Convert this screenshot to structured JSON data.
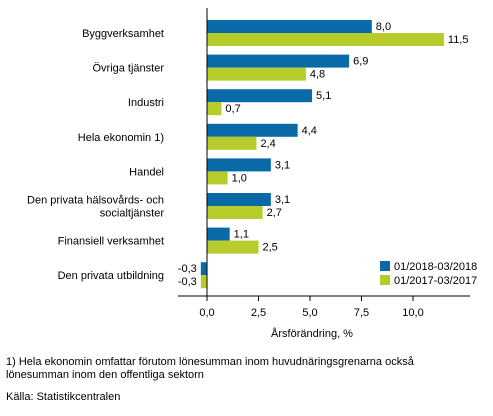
{
  "chart_data": {
    "type": "bar",
    "orientation": "horizontal",
    "categories": [
      [
        "Byggverksamhet"
      ],
      [
        "Övriga tjänster"
      ],
      [
        "Industri"
      ],
      [
        "Hela ekonomin 1)"
      ],
      [
        "Handel"
      ],
      [
        "Den privata hälsovårds- och",
        "socialtjänster"
      ],
      [
        "Finansiell verksamhet"
      ],
      [
        "Den privata utbildning"
      ]
    ],
    "series": [
      {
        "name": "01/2018-03/2018",
        "color": "#0a6aa8",
        "values": [
          8.0,
          6.9,
          5.1,
          4.4,
          3.1,
          3.1,
          1.1,
          -0.3
        ],
        "labels": [
          "8,0",
          "6,9",
          "5,1",
          "4,4",
          "3,1",
          "3,1",
          "1,1",
          "-0,3"
        ]
      },
      {
        "name": "01/2017-03/2017",
        "color": "#b5cc2a",
        "values": [
          11.5,
          4.8,
          0.7,
          2.4,
          1.0,
          2.7,
          2.5,
          -0.3
        ],
        "labels": [
          "11,5",
          "4,8",
          "0,7",
          "2,4",
          "1,0",
          "2,7",
          "2,5",
          "-0,3"
        ]
      }
    ],
    "xlim": [
      -1.2,
      13.2
    ],
    "ticks": [
      0,
      2.5,
      5,
      7.5,
      10
    ],
    "tick_labels": [
      "0,0",
      "2,5",
      "5,0",
      "7,5",
      "10,0"
    ],
    "xlabel": "Årsförändring, %",
    "ylabel": "",
    "title": "",
    "grid": false,
    "legend_position": "bottom-right"
  },
  "footnotes": {
    "note_line1": "1) Hela ekonomin omfattar förutom lönesumman inom huvudnäringsgrenarna också",
    "note_line2": "lönesumman inom den offentliga sektorn",
    "source": "Källa: Statistikcentralen"
  }
}
